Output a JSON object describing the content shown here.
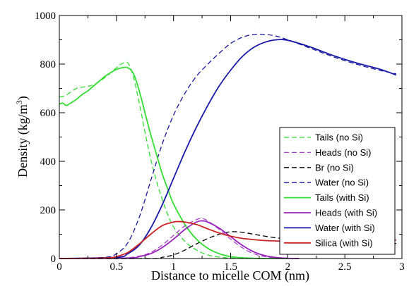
{
  "chart_data": {
    "type": "line",
    "xlabel": "Distance to micelle COM (nm)",
    "ylabel_main": "Density (kg/m",
    "ylabel_sup": "3",
    "ylabel_close": ")",
    "xlim": [
      0,
      3
    ],
    "ylim": [
      0,
      1000
    ],
    "x_ticks": [
      0,
      0.5,
      1,
      1.5,
      2,
      2.5,
      3
    ],
    "x_tick_labels": [
      "0",
      "0.5",
      "1",
      "1.5",
      "2",
      "2.5",
      "3"
    ],
    "y_ticks": [
      0,
      200,
      400,
      600,
      800,
      1000
    ],
    "y_tick_labels": [
      "0",
      "200",
      "400",
      "600",
      "800",
      "1000"
    ],
    "legend_position": "right",
    "series": [
      {
        "name": "Tails (no Si)",
        "color": "#33dd33",
        "dash": true,
        "x": [
          0,
          0.05,
          0.1,
          0.15,
          0.2,
          0.3,
          0.4,
          0.5,
          0.55,
          0.6,
          0.65,
          0.7,
          0.75,
          0.8,
          0.85,
          0.9,
          0.95,
          1.0,
          1.1,
          1.2,
          1.3,
          1.4,
          1.5,
          1.6,
          1.7,
          1.8
        ],
        "y": [
          665,
          670,
          685,
          700,
          705,
          715,
          745,
          785,
          802,
          805,
          745,
          640,
          520,
          410,
          320,
          245,
          180,
          130,
          70,
          35,
          15,
          6,
          2,
          0,
          0,
          0
        ]
      },
      {
        "name": "Heads (no Si)",
        "color": "#aa44cc",
        "dash": true,
        "x": [
          0,
          0.5,
          0.6,
          0.7,
          0.8,
          0.9,
          1.0,
          1.1,
          1.2,
          1.25,
          1.3,
          1.4,
          1.5,
          1.6,
          1.7,
          1.8,
          1.9,
          2.0
        ],
        "y": [
          0,
          0,
          3,
          10,
          25,
          55,
          95,
          135,
          160,
          165,
          155,
          120,
          80,
          45,
          20,
          8,
          2,
          0
        ]
      },
      {
        "name": "Br (no Si)",
        "color": "#000000",
        "dash": true,
        "x": [
          0,
          0.8,
          0.9,
          1.0,
          1.1,
          1.2,
          1.3,
          1.4,
          1.5,
          1.6,
          1.7,
          1.8,
          1.9,
          2.0,
          2.2,
          2.4,
          2.6,
          2.8,
          2.95
        ],
        "y": [
          0,
          0,
          5,
          15,
          35,
          60,
          82,
          100,
          110,
          108,
          100,
          92,
          85,
          80,
          73,
          68,
          65,
          63,
          62
        ]
      },
      {
        "name": "Water (no Si)",
        "color": "#1a1a99",
        "dash": true,
        "x": [
          0,
          0.4,
          0.5,
          0.6,
          0.7,
          0.8,
          0.9,
          1.0,
          1.1,
          1.2,
          1.3,
          1.4,
          1.5,
          1.6,
          1.7,
          1.8,
          1.9,
          2.0,
          2.2,
          2.4,
          2.6,
          2.8,
          2.95
        ],
        "y": [
          0,
          5,
          20,
          65,
          170,
          320,
          470,
          590,
          680,
          750,
          800,
          845,
          885,
          910,
          922,
          922,
          915,
          900,
          865,
          830,
          800,
          775,
          760
        ]
      },
      {
        "name": "Tails (with Si)",
        "color": "#33dd33",
        "dash": false,
        "x": [
          0,
          0.03,
          0.06,
          0.1,
          0.15,
          0.2,
          0.25,
          0.3,
          0.35,
          0.4,
          0.45,
          0.5,
          0.55,
          0.6,
          0.65,
          0.7,
          0.75,
          0.8,
          0.85,
          0.9,
          0.95,
          1.0,
          1.1,
          1.2,
          1.3,
          1.4,
          1.5,
          1.6,
          1.7,
          1.8,
          1.9,
          2.0
        ],
        "y": [
          635,
          640,
          630,
          640,
          655,
          675,
          690,
          710,
          730,
          750,
          765,
          778,
          785,
          785,
          760,
          690,
          600,
          510,
          430,
          350,
          285,
          225,
          140,
          80,
          42,
          20,
          8,
          3,
          1,
          0,
          0,
          0
        ]
      },
      {
        "name": "Heads (with Si)",
        "color": "#9922bb",
        "dash": false,
        "x": [
          0,
          0.6,
          0.7,
          0.8,
          0.9,
          1.0,
          1.1,
          1.2,
          1.25,
          1.3,
          1.4,
          1.5,
          1.6,
          1.7,
          1.8,
          1.9,
          2.0,
          2.1
        ],
        "y": [
          0,
          2,
          8,
          20,
          45,
          80,
          120,
          150,
          155,
          150,
          125,
          90,
          55,
          28,
          12,
          4,
          1,
          0
        ]
      },
      {
        "name": "Water (with Si)",
        "color": "#1a1aaa",
        "dash": false,
        "x": [
          0,
          0.5,
          0.6,
          0.7,
          0.8,
          0.9,
          1.0,
          1.1,
          1.2,
          1.3,
          1.4,
          1.5,
          1.6,
          1.7,
          1.8,
          1.9,
          2.0,
          2.2,
          2.4,
          2.6,
          2.8,
          2.95
        ],
        "y": [
          0,
          5,
          20,
          55,
          125,
          220,
          330,
          440,
          540,
          630,
          710,
          775,
          830,
          868,
          890,
          900,
          898,
          870,
          835,
          805,
          780,
          755
        ]
      },
      {
        "name": "Silica (with Si)",
        "color": "#cc2222",
        "dash": false,
        "x": [
          0,
          0.4,
          0.5,
          0.6,
          0.7,
          0.8,
          0.9,
          1.0,
          1.05,
          1.1,
          1.2,
          1.3,
          1.4,
          1.5,
          1.6,
          1.7,
          1.8,
          1.9,
          2.0,
          2.2,
          2.4,
          2.6,
          2.8,
          2.95
        ],
        "y": [
          0,
          2,
          8,
          25,
          60,
          100,
          135,
          150,
          152,
          150,
          140,
          122,
          105,
          92,
          83,
          78,
          74,
          72,
          71,
          70,
          70,
          72,
          74,
          76
        ]
      }
    ]
  }
}
